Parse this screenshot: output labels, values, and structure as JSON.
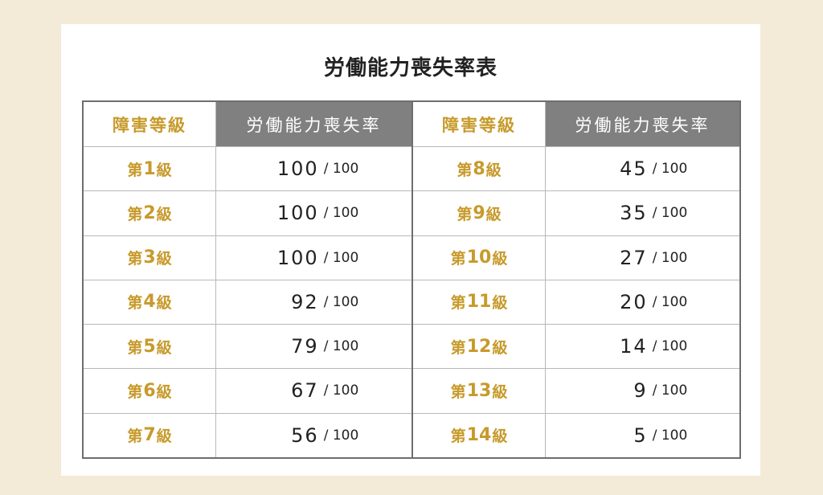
{
  "title": "労働能力喪失率表",
  "header": {
    "level": "障害等級",
    "rate": "労働能力喪失率"
  },
  "level_prefix": "第",
  "level_suffix": "級",
  "denominator": "/ 100",
  "left": [
    {
      "grade": "1",
      "rate": "100"
    },
    {
      "grade": "2",
      "rate": "100"
    },
    {
      "grade": "3",
      "rate": "100"
    },
    {
      "grade": "4",
      "rate": "92"
    },
    {
      "grade": "5",
      "rate": "79"
    },
    {
      "grade": "6",
      "rate": "67"
    },
    {
      "grade": "7",
      "rate": "56"
    }
  ],
  "right": [
    {
      "grade": "8",
      "rate": "45"
    },
    {
      "grade": "9",
      "rate": "35"
    },
    {
      "grade": "10",
      "rate": "27"
    },
    {
      "grade": "11",
      "rate": "20"
    },
    {
      "grade": "12",
      "rate": "14"
    },
    {
      "grade": "13",
      "rate": "9"
    },
    {
      "grade": "14",
      "rate": "5"
    }
  ],
  "colors": {
    "gold": "#c79a2b",
    "header_gray": "#808080",
    "background": "#f3ead7"
  }
}
